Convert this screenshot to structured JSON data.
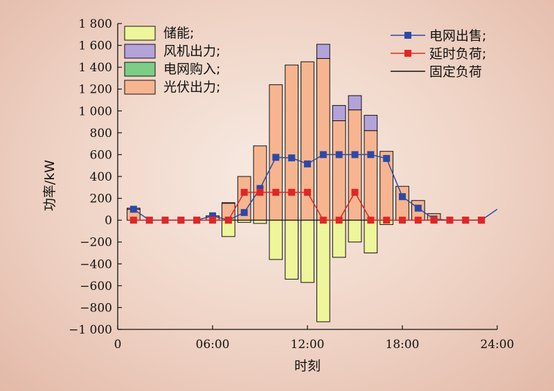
{
  "chart_data": {
    "type": "bar",
    "xlabel": "时刻",
    "ylabel": "功率/kW",
    "ylim": [
      -1000,
      1800
    ],
    "xlim": [
      0,
      24
    ],
    "yticks": [
      -1000,
      -800,
      -600,
      -400,
      -200,
      0,
      200,
      400,
      600,
      800,
      1000,
      1200,
      1400,
      1600,
      1800
    ],
    "ytick_labels": [
      "−1 000",
      "−800",
      "−600",
      "−400",
      "−200",
      "0",
      "200",
      "400",
      "600",
      "800",
      "1 000",
      "1 200",
      "1 400",
      "1 600",
      "1 800"
    ],
    "xticks": [
      0,
      6,
      12,
      18,
      24
    ],
    "xtick_labels": [
      "0",
      "06:00",
      "12:00",
      "18:00",
      "24:00"
    ],
    "legend_left": [
      "储能;",
      "风机出力;",
      "电网购入;",
      "光伏出力;"
    ],
    "legend_right": [
      "电网出售;",
      "延时负荷;",
      "固定负荷"
    ],
    "colors": {
      "storage": "#eef59a",
      "wind": "#b3a3d8",
      "grid_buy": "#7ccd86",
      "pv": "#f6b590",
      "grid_sell": "#2a4aa8",
      "delay_load": "#e02626",
      "fixed_load": "#111111"
    },
    "hours": [
      1,
      2,
      3,
      4,
      5,
      6,
      7,
      8,
      9,
      10,
      11,
      12,
      13,
      14,
      15,
      16,
      17,
      18,
      19,
      20,
      21,
      22,
      23
    ],
    "series": [
      {
        "name": "储能",
        "values": [
          0,
          0,
          0,
          0,
          0,
          0,
          -150,
          -20,
          -30,
          -360,
          -540,
          -570,
          -930,
          -340,
          -200,
          -300,
          -40,
          0,
          0,
          0,
          0,
          0,
          0
        ]
      },
      {
        "name": "风机出力",
        "values": [
          10,
          0,
          0,
          0,
          0,
          10,
          5,
          0,
          0,
          0,
          0,
          0,
          130,
          140,
          130,
          140,
          0,
          0,
          0,
          0,
          0,
          0,
          0
        ]
      },
      {
        "name": "电网购入",
        "values": [
          0,
          0,
          0,
          0,
          0,
          0,
          0,
          0,
          0,
          0,
          0,
          0,
          0,
          0,
          0,
          0,
          0,
          0,
          0,
          0,
          0,
          0,
          0
        ]
      },
      {
        "name": "光伏出力",
        "values": [
          100,
          0,
          0,
          0,
          0,
          30,
          155,
          400,
          680,
          1240,
          1420,
          1450,
          1480,
          910,
          1010,
          820,
          630,
          310,
          180,
          60,
          0,
          0,
          0
        ]
      },
      {
        "name": "电网出售",
        "values": [
          100,
          0,
          0,
          0,
          0,
          40,
          0,
          70,
          290,
          575,
          570,
          515,
          600,
          600,
          600,
          600,
          565,
          215,
          110,
          10,
          0,
          0,
          0
        ]
      },
      {
        "name": "延时负荷",
        "values": [
          0,
          0,
          0,
          0,
          0,
          0,
          0,
          255,
          255,
          255,
          255,
          255,
          0,
          0,
          255,
          0,
          0,
          0,
          0,
          0,
          0,
          0,
          0
        ]
      },
      {
        "name": "固定负荷",
        "values": [
          0,
          0,
          0,
          0,
          0,
          0,
          0,
          0,
          0,
          0,
          0,
          0,
          0,
          0,
          0,
          0,
          0,
          0,
          0,
          0,
          0,
          0,
          0
        ]
      }
    ]
  }
}
